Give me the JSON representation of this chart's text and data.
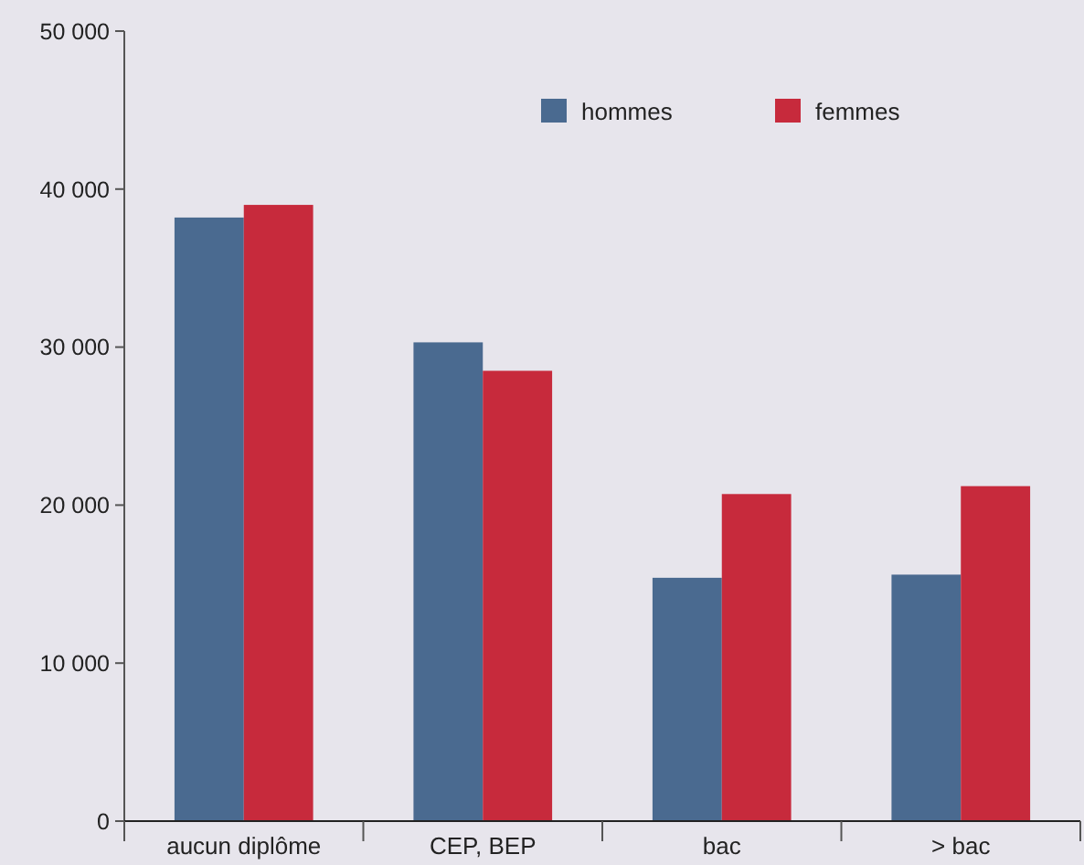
{
  "chart_data": {
    "type": "bar",
    "categories": [
      "aucun diplôme",
      "CEP, BEP",
      "bac",
      "> bac"
    ],
    "series": [
      {
        "name": "hommes",
        "color": "#4a6a90",
        "values": [
          38200,
          30300,
          15400,
          15600
        ]
      },
      {
        "name": "femmes",
        "color": "#c72a3c",
        "values": [
          39000,
          28500,
          20700,
          21200
        ]
      }
    ],
    "ylim": [
      0,
      50000
    ],
    "yticks": [
      0,
      {
        "value": 10000,
        "label": "10 000"
      },
      {
        "value": 20000,
        "label": "20 000"
      },
      {
        "value": 30000,
        "label": "30 000"
      },
      {
        "value": 40000,
        "label": "40 000"
      },
      {
        "value": 50000,
        "label": "50 000"
      }
    ],
    "grid": false,
    "legend": "top right"
  }
}
